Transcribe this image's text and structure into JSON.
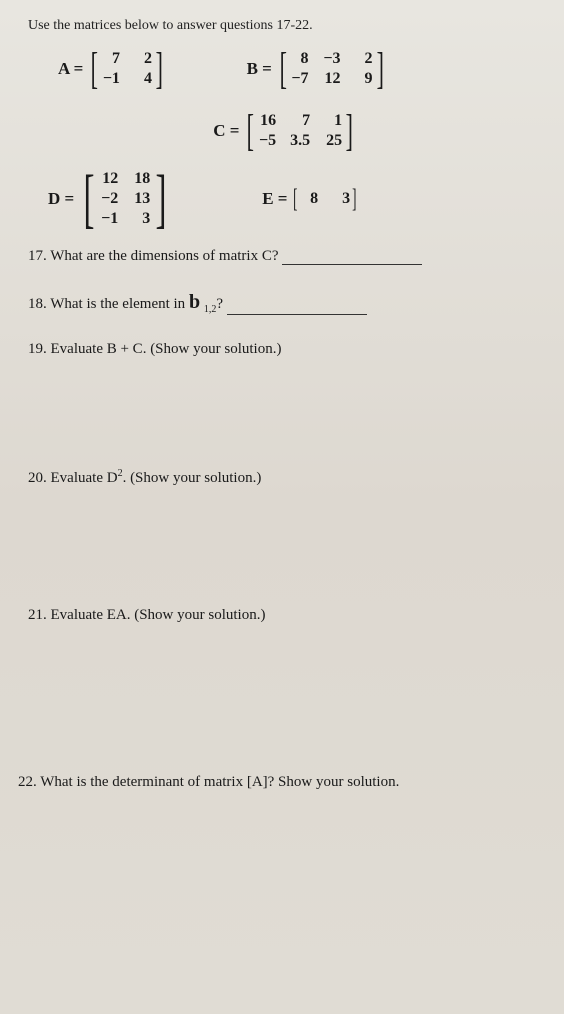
{
  "instruction": "Use the matrices below to answer questions 17-22.",
  "matrixA": {
    "label": "A =",
    "cells": [
      "7",
      "2",
      "−1",
      "4"
    ]
  },
  "matrixB": {
    "label": "B =",
    "cells": [
      "8",
      "−3",
      "2",
      "−7",
      "12",
      "9"
    ]
  },
  "matrixC": {
    "label": "C =",
    "cells": [
      "16",
      "7",
      "1",
      "−5",
      "3.5",
      "25"
    ]
  },
  "matrixD": {
    "label": "D =",
    "cells": [
      "12",
      "18",
      "−2",
      "13",
      "−1",
      "3"
    ]
  },
  "matrixE": {
    "label": "E =",
    "cells": [
      "8",
      "3"
    ]
  },
  "q17": "17. What are the dimensions of matrix C?",
  "q18a": "18. What is the element in ",
  "q18b": "b",
  "q18sub": "1,2",
  "q18c": "?",
  "q19": "19. Evaluate B + C. (Show your solution.)",
  "q20a": "20. Evaluate D",
  "q20sup": "2",
  "q20b": ". (Show your solution.)",
  "q21": "21. Evaluate EA. (Show your solution.)",
  "q22": "22. What is the determinant of matrix [A]? Show your solution."
}
